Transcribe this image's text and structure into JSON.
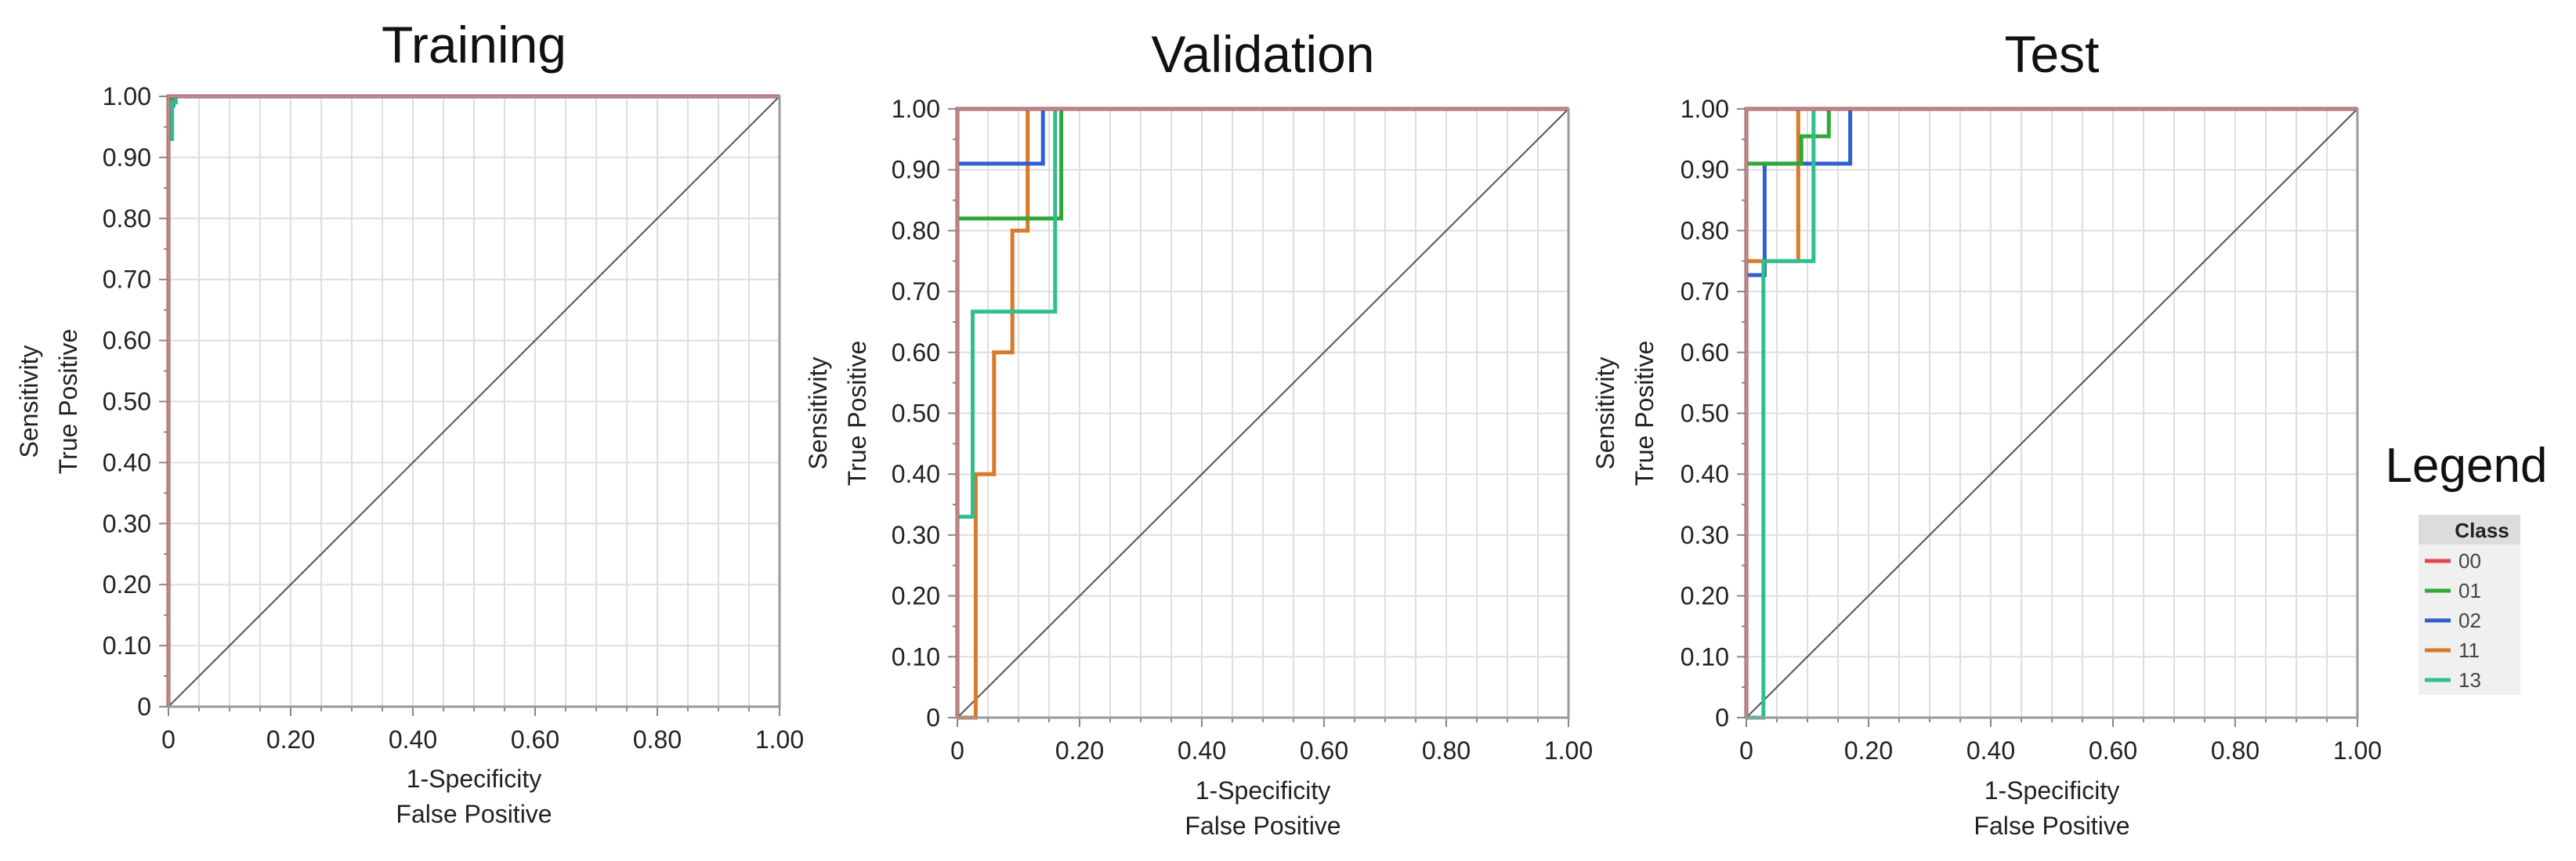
{
  "legend": {
    "title": "Legend",
    "header": "Class",
    "entries": [
      {
        "label": "00",
        "color": "#e0464f"
      },
      {
        "label": "01",
        "color": "#2ea836"
      },
      {
        "label": "02",
        "color": "#2f5fd0"
      },
      {
        "label": "11",
        "color": "#d9792a"
      },
      {
        "label": "13",
        "color": "#2fbf8f"
      }
    ]
  },
  "chart_data": [
    {
      "type": "line",
      "title": "Training",
      "xlabel": "1-Specificity",
      "xlabel2": "False Positive",
      "ylabel": "Sensitivity",
      "ylabel2": "True Positive",
      "xlim": [
        0,
        1
      ],
      "ylim": [
        0,
        1
      ],
      "xticks": [
        "0",
        "0.20",
        "0.40",
        "0.60",
        "0.80",
        "1.00"
      ],
      "yticks": [
        "0",
        "0.10",
        "0.20",
        "0.30",
        "0.40",
        "0.50",
        "0.60",
        "0.70",
        "0.80",
        "0.90",
        "1.00"
      ],
      "grid": true,
      "diagonal": true,
      "series": [
        {
          "name": "00",
          "color": "#e0464f",
          "points": [
            [
              0,
              0
            ],
            [
              0,
              1
            ],
            [
              1,
              1
            ]
          ]
        },
        {
          "name": "01",
          "color": "#2ea836",
          "points": [
            [
              0,
              0
            ],
            [
              0,
              0.99
            ],
            [
              0.005,
              0.99
            ],
            [
              0.005,
              1
            ],
            [
              1,
              1
            ]
          ]
        },
        {
          "name": "02",
          "color": "#2f5fd0",
          "points": [
            [
              0,
              0
            ],
            [
              0,
              0.985
            ],
            [
              0.008,
              0.985
            ],
            [
              0.008,
              1
            ],
            [
              1,
              1
            ]
          ]
        },
        {
          "name": "11",
          "color": "#d9792a",
          "points": [
            [
              0,
              0
            ],
            [
              0,
              0.96
            ],
            [
              0.004,
              0.96
            ],
            [
              0.004,
              1
            ],
            [
              1,
              1
            ]
          ]
        },
        {
          "name": "13",
          "color": "#2fbf8f",
          "points": [
            [
              0,
              0
            ],
            [
              0,
              0.93
            ],
            [
              0.006,
              0.93
            ],
            [
              0.006,
              0.99
            ],
            [
              0.012,
              0.99
            ],
            [
              0.012,
              1
            ],
            [
              1,
              1
            ]
          ]
        }
      ]
    },
    {
      "type": "line",
      "title": "Validation",
      "xlabel": "1-Specificity",
      "xlabel2": "False Positive",
      "ylabel": "Sensitivity",
      "ylabel2": "True Positive",
      "xlim": [
        0,
        1
      ],
      "ylim": [
        0,
        1
      ],
      "xticks": [
        "0",
        "0.20",
        "0.40",
        "0.60",
        "0.80",
        "1.00"
      ],
      "yticks": [
        "0",
        "0.10",
        "0.20",
        "0.30",
        "0.40",
        "0.50",
        "0.60",
        "0.70",
        "0.80",
        "0.90",
        "1.00"
      ],
      "grid": true,
      "diagonal": true,
      "series": [
        {
          "name": "00",
          "color": "#e0464f",
          "points": [
            [
              0,
              0
            ],
            [
              0,
              1
            ],
            [
              1,
              1
            ]
          ]
        },
        {
          "name": "01",
          "color": "#2ea836",
          "points": [
            [
              0,
              0
            ],
            [
              0,
              0.82
            ],
            [
              0.17,
              0.82
            ],
            [
              0.17,
              1
            ],
            [
              1,
              1
            ]
          ]
        },
        {
          "name": "02",
          "color": "#2f5fd0",
          "points": [
            [
              0,
              0
            ],
            [
              0,
              0.91
            ],
            [
              0.14,
              0.91
            ],
            [
              0.14,
              1
            ],
            [
              1,
              1
            ]
          ]
        },
        {
          "name": "11",
          "color": "#d9792a",
          "points": [
            [
              0,
              0
            ],
            [
              0.03,
              0
            ],
            [
              0.03,
              0.4
            ],
            [
              0.06,
              0.4
            ],
            [
              0.06,
              0.6
            ],
            [
              0.09,
              0.6
            ],
            [
              0.09,
              0.8
            ],
            [
              0.115,
              0.8
            ],
            [
              0.115,
              1
            ],
            [
              1,
              1
            ]
          ]
        },
        {
          "name": "13",
          "color": "#2fbf8f",
          "points": [
            [
              0,
              0
            ],
            [
              0,
              0.33
            ],
            [
              0.025,
              0.33
            ],
            [
              0.025,
              0.667
            ],
            [
              0.16,
              0.667
            ],
            [
              0.16,
              1
            ],
            [
              1,
              1
            ]
          ]
        }
      ]
    },
    {
      "type": "line",
      "title": "Test",
      "xlabel": "1-Specificity",
      "xlabel2": "False Positive",
      "ylabel": "Sensitivity",
      "ylabel2": "True Positive",
      "xlim": [
        0,
        1
      ],
      "ylim": [
        0,
        1
      ],
      "xticks": [
        "0",
        "0.20",
        "0.40",
        "0.60",
        "0.80",
        "1.00"
      ],
      "yticks": [
        "0",
        "0.10",
        "0.20",
        "0.30",
        "0.40",
        "0.50",
        "0.60",
        "0.70",
        "0.80",
        "0.90",
        "1.00"
      ],
      "grid": true,
      "diagonal": true,
      "series": [
        {
          "name": "00",
          "color": "#e0464f",
          "points": [
            [
              0,
              0
            ],
            [
              0,
              1
            ],
            [
              1,
              1
            ]
          ]
        },
        {
          "name": "01",
          "color": "#2ea836",
          "points": [
            [
              0,
              0
            ],
            [
              0,
              0.91
            ],
            [
              0.09,
              0.91
            ],
            [
              0.09,
              0.955
            ],
            [
              0.135,
              0.955
            ],
            [
              0.135,
              1
            ],
            [
              1,
              1
            ]
          ]
        },
        {
          "name": "02",
          "color": "#2f5fd0",
          "points": [
            [
              0,
              0
            ],
            [
              0,
              0.727
            ],
            [
              0.03,
              0.727
            ],
            [
              0.03,
              0.91
            ],
            [
              0.17,
              0.91
            ],
            [
              0.17,
              1
            ],
            [
              1,
              1
            ]
          ]
        },
        {
          "name": "11",
          "color": "#d9792a",
          "points": [
            [
              0,
              0
            ],
            [
              0,
              0.75
            ],
            [
              0.085,
              0.75
            ],
            [
              0.085,
              1
            ],
            [
              1,
              1
            ]
          ]
        },
        {
          "name": "13",
          "color": "#2fbf8f",
          "points": [
            [
              0,
              0
            ],
            [
              0.028,
              0
            ],
            [
              0.028,
              0.75
            ],
            [
              0.11,
              0.75
            ],
            [
              0.11,
              1
            ],
            [
              1,
              1
            ]
          ]
        }
      ]
    }
  ]
}
